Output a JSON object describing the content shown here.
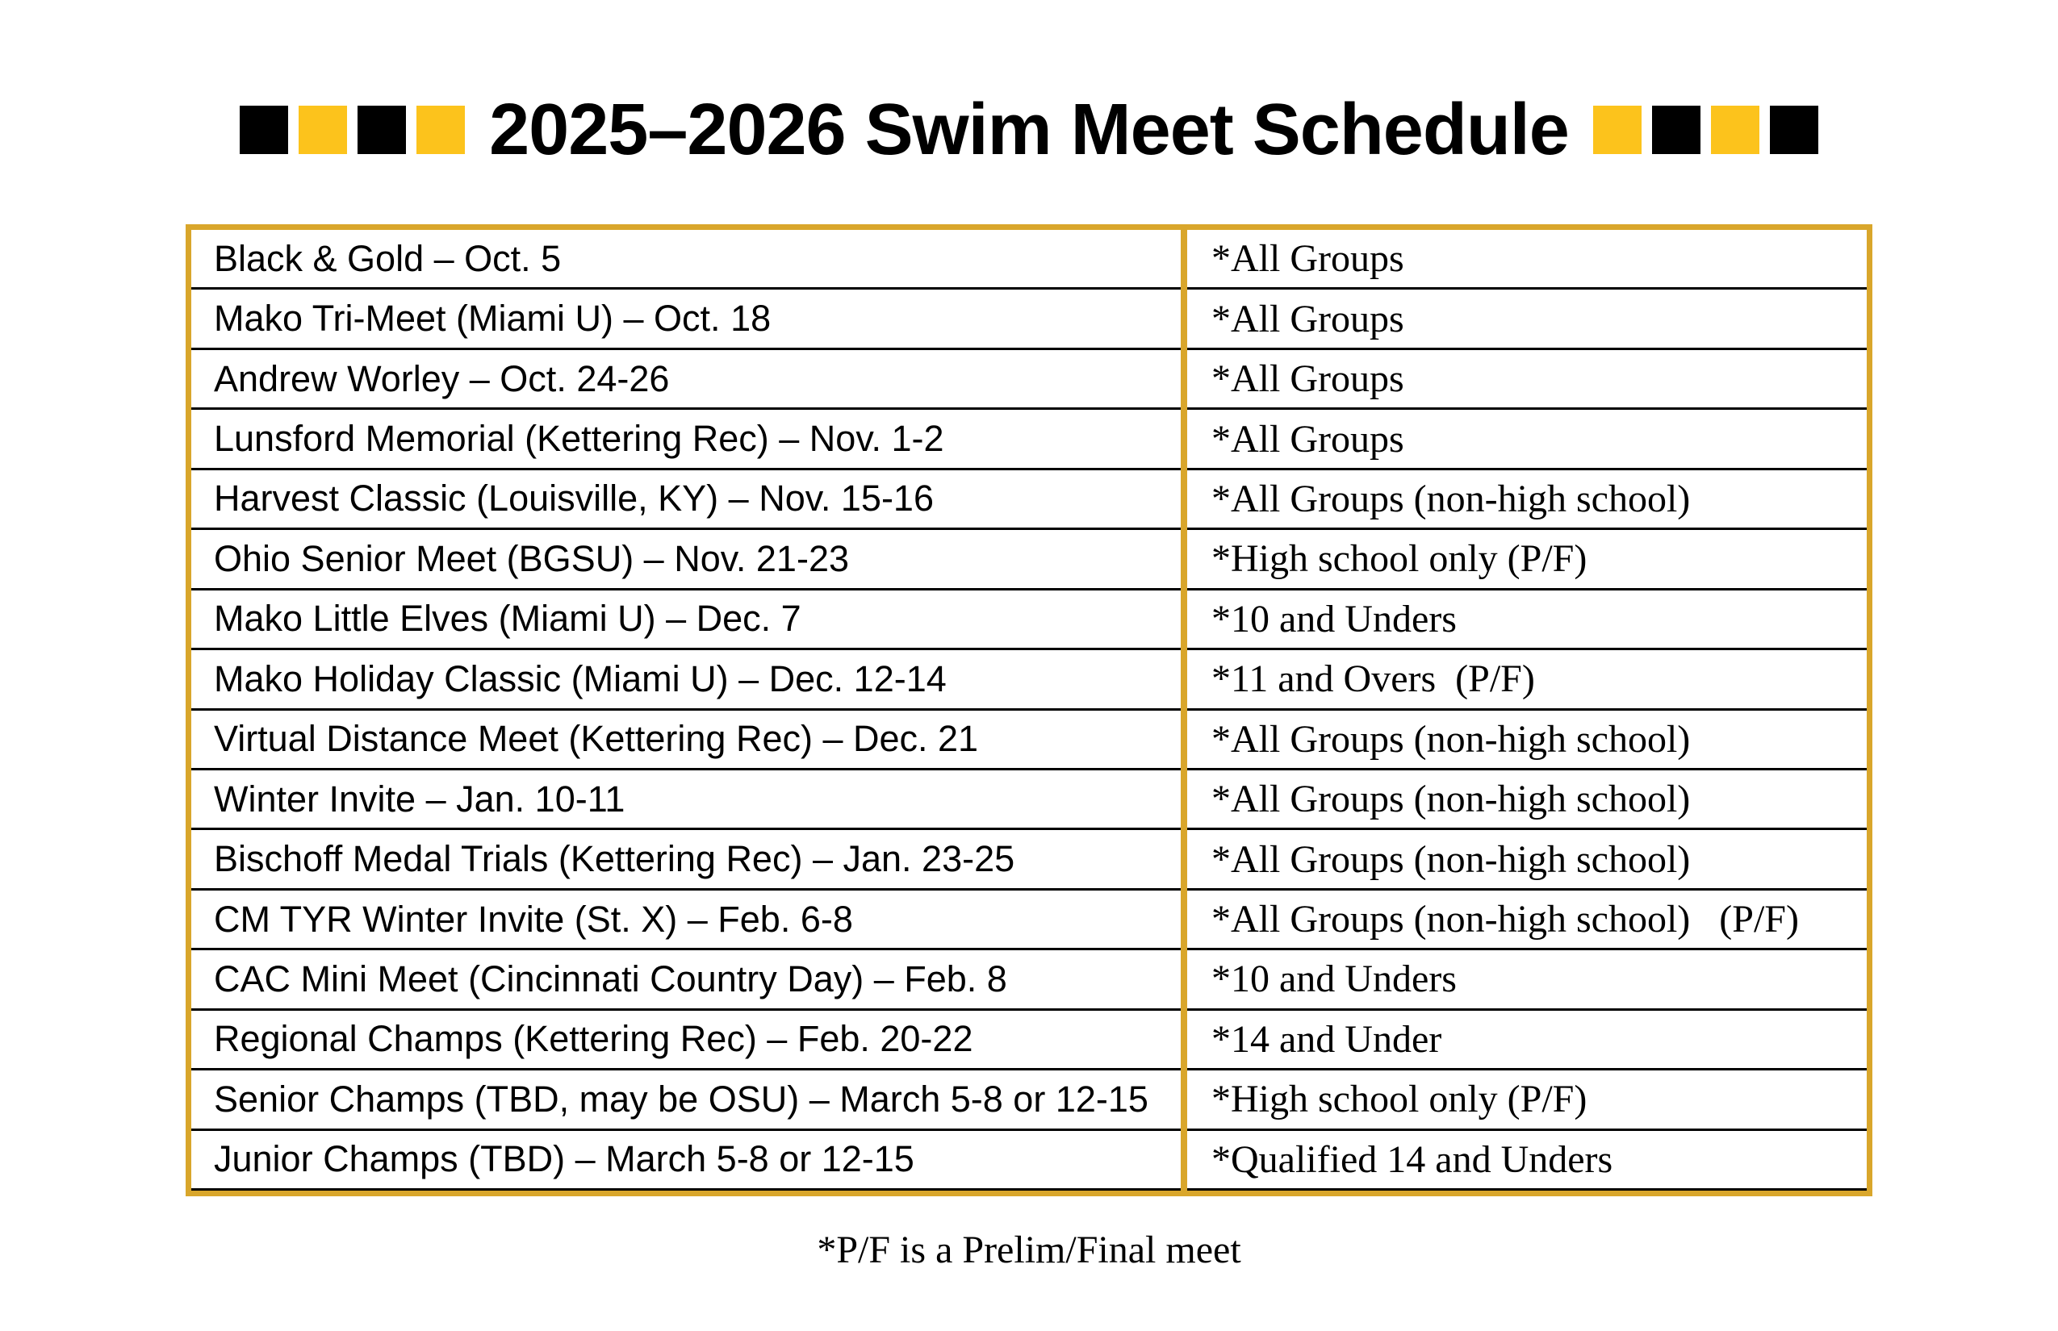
{
  "title": {
    "text": "2025–2026 Swim Meet Schedule",
    "left_squares": [
      "black",
      "gold",
      "black",
      "gold"
    ],
    "right_squares": [
      "gold",
      "black",
      "gold",
      "black"
    ]
  },
  "colors": {
    "black": "#000000",
    "gold_bright": "#fcc31c",
    "gold_border": "#d9a62b"
  },
  "table": {
    "rows": [
      {
        "meet": "Black & Gold – Oct. 5",
        "groups": "*All Groups"
      },
      {
        "meet": "Mako Tri-Meet (Miami U) – Oct. 18",
        "groups": "*All Groups"
      },
      {
        "meet": "Andrew Worley – Oct. 24-26",
        "groups": "*All Groups"
      },
      {
        "meet": "Lunsford Memorial (Kettering Rec) – Nov. 1-2",
        "groups": "*All Groups"
      },
      {
        "meet": "Harvest Classic (Louisville, KY) – Nov. 15-16",
        "groups": "*All Groups (non-high school)"
      },
      {
        "meet": "Ohio Senior Meet (BGSU) – Nov. 21-23",
        "groups": "*High school only (P/F)"
      },
      {
        "meet": "Mako Little Elves (Miami U) – Dec. 7",
        "groups": "*10 and Unders"
      },
      {
        "meet": "Mako Holiday Classic (Miami U) – Dec. 12-14",
        "groups": "*11 and Overs  (P/F)"
      },
      {
        "meet": "Virtual Distance Meet (Kettering Rec) – Dec. 21",
        "groups": "*All Groups (non-high school)"
      },
      {
        "meet": "Winter Invite – Jan. 10-11",
        "groups": "*All Groups (non-high school)"
      },
      {
        "meet": "Bischoff Medal Trials (Kettering Rec) – Jan. 23-25",
        "groups": "*All Groups (non-high school)"
      },
      {
        "meet": "CM TYR Winter Invite (St. X) – Feb. 6-8",
        "groups": "*All Groups (non-high school)   (P/F)"
      },
      {
        "meet": "CAC Mini Meet (Cincinnati Country Day) – Feb. 8",
        "groups": "*10 and Unders"
      },
      {
        "meet": "Regional Champs (Kettering Rec) – Feb. 20-22",
        "groups": "*14 and Under"
      },
      {
        "meet": "Senior Champs (TBD, may be OSU) – March 5-8 or 12-15",
        "groups": "*High school only (P/F)"
      },
      {
        "meet": "Junior Champs (TBD) – March 5-8 or 12-15",
        "groups": "*Qualified 14 and Unders"
      }
    ]
  },
  "footnote": "*P/F is a Prelim/Final meet"
}
